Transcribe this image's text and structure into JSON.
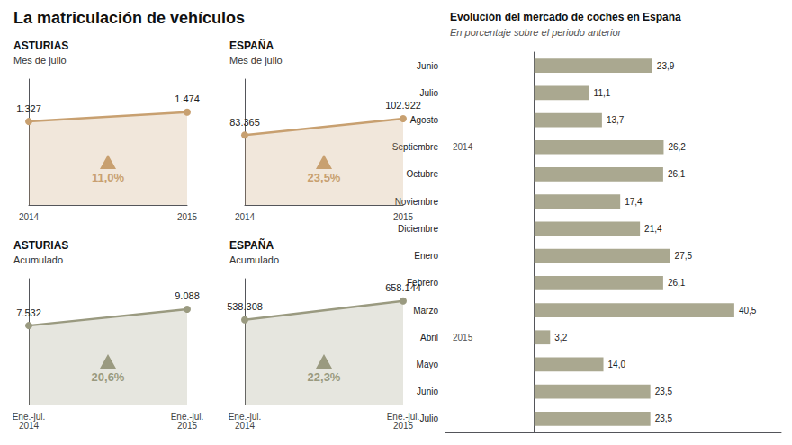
{
  "title": "La matriculación de vehículos",
  "chart_data": [
    {
      "type": "line",
      "title": "ASTURIAS",
      "subtitle": "Mes de julio",
      "categories": [
        "2014",
        "2015"
      ],
      "values": [
        1327,
        1474
      ],
      "value_labels": [
        "1.327",
        "1.474"
      ],
      "data_labels": true,
      "annotations": [
        "11,0%"
      ],
      "color": "#c8a070",
      "ylim": [
        0,
        2000
      ],
      "tick_labels": "x",
      "grid": false
    },
    {
      "type": "line",
      "title": "ESPAÑA",
      "subtitle": "Mes de julio",
      "categories": [
        "2014",
        "2015"
      ],
      "values": [
        83365,
        102922
      ],
      "value_labels": [
        "83.365",
        "102.922"
      ],
      "data_labels": true,
      "annotations": [
        "23,5%"
      ],
      "color": "#c8a070",
      "ylim": [
        0,
        150000
      ],
      "tick_labels": "x",
      "grid": false
    },
    {
      "type": "line",
      "title": "ASTURIAS",
      "subtitle": "Acumulado",
      "categories": [
        "Ene.-jul.\n2014",
        "Ene.-jul.\n2015"
      ],
      "values": [
        7532,
        9088
      ],
      "value_labels": [
        "7.532",
        "9.088"
      ],
      "data_labels": true,
      "annotations": [
        "20,6%"
      ],
      "color": "#9a9a80",
      "ylim": [
        0,
        12000
      ],
      "tick_labels": "x",
      "grid": false
    },
    {
      "type": "line",
      "title": "ESPAÑA",
      "subtitle": "Acumulado",
      "categories": [
        "Ene.-jul.\n2014",
        "Ene.-jul.\n2015"
      ],
      "values": [
        538308,
        658144
      ],
      "value_labels": [
        "538.308",
        "658.144"
      ],
      "data_labels": true,
      "annotations": [
        "22,3%"
      ],
      "color": "#9a9a80",
      "ylim": [
        0,
        800000
      ],
      "tick_labels": "x",
      "grid": false
    },
    {
      "type": "bar",
      "orientation": "horizontal",
      "title": "Evolución del mercado de coches en España",
      "subtitle": "En porcentaje sobre el periodo anterior",
      "categories": [
        "Junio",
        "Julio",
        "Agosto",
        "Septiembre",
        "Octubre",
        "Noviembre",
        "Diciembre",
        "Enero",
        "Febrero",
        "Marzo",
        "Abril",
        "Mayo",
        "Junio",
        "Julio"
      ],
      "values": [
        23.9,
        11.1,
        13.7,
        26.2,
        26.1,
        17.4,
        21.4,
        27.5,
        26.1,
        40.5,
        3.2,
        14.0,
        23.5,
        23.5
      ],
      "value_labels": [
        "23,9",
        "11,1",
        "13,7",
        "26,2",
        "26,1",
        "17,4",
        "21,4",
        "27,5",
        "26,1",
        "40,5",
        "3,2",
        "14,0",
        "23,5",
        "23,5"
      ],
      "data_labels": true,
      "color": "#aaa890",
      "annotations": [
        {
          "index": 3,
          "text": "2014"
        },
        {
          "index": 10,
          "text": "2015"
        }
      ],
      "xlim": [
        -18,
        50
      ],
      "tick_labels": "y",
      "grid": false
    }
  ]
}
